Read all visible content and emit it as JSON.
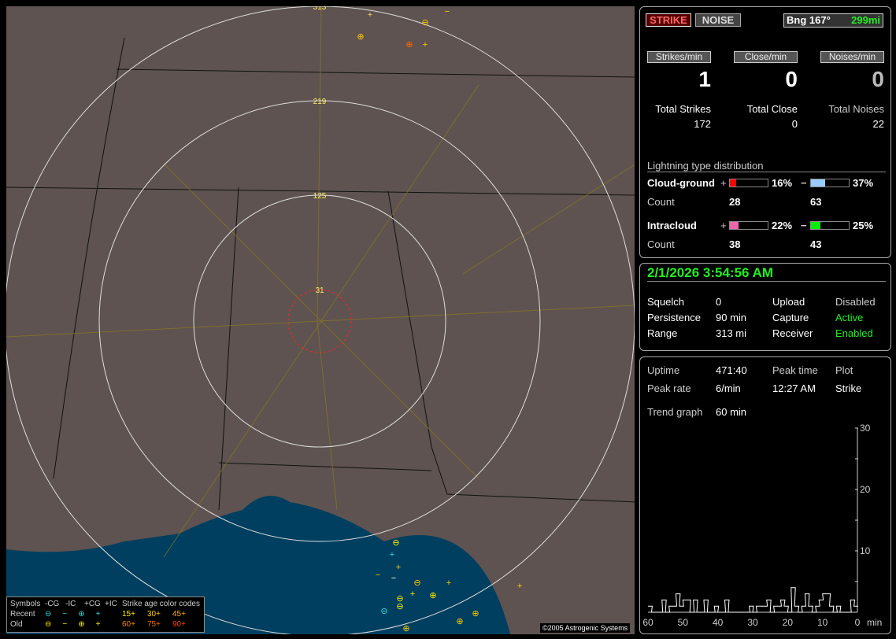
{
  "map": {
    "ring_labels": [
      "313",
      "219",
      "125",
      "31"
    ],
    "copyright": "©2005 Astrogenic Systems",
    "legend": {
      "symbols": "Symbols",
      "neg_cg": "-CG",
      "neg_ic": "-IC",
      "pos_cg": "+CG",
      "pos_ic": "+IC",
      "age_title": "Strike age color codes",
      "recent": "Recent",
      "old": "Old",
      "ages": [
        {
          "label": "15+",
          "color": "#ffee00"
        },
        {
          "label": "30+",
          "color": "#ffcc00"
        },
        {
          "label": "45+",
          "color": "#ffaa00"
        },
        {
          "label": "60+",
          "color": "#ff8800"
        },
        {
          "label": "75+",
          "color": "#ff6600"
        },
        {
          "label": "90+",
          "color": "#ff4400"
        }
      ],
      "recent_color": "#22dddd",
      "old_color": "#ffee00"
    }
  },
  "status": {
    "strike_label": "STRIKE",
    "noise_label": "NOISE",
    "bearing": "Bng 167°",
    "distance": "299mi",
    "strikes_min_label": "Strikes/min",
    "close_min_label": "Close/min",
    "noises_min_label": "Noises/min",
    "strikes_min": "1",
    "close_min": "0",
    "noises_min": "0",
    "total_strikes_label": "Total Strikes",
    "total_close_label": "Total Close",
    "total_noises_label": "Total Noises",
    "total_strikes": "172",
    "total_close": "0",
    "total_noises": "22"
  },
  "distribution": {
    "title": "Lightning type distribution",
    "cg": {
      "label": "Cloud-ground",
      "plus": "+",
      "minus": "−",
      "pos_pct": 16,
      "neg_pct": 37,
      "pos_text": "16%",
      "neg_text": "37%",
      "count_label": "Count",
      "pos_count": "28",
      "neg_count": "63",
      "pos_color": "#ff0000",
      "neg_color": "#99ccff"
    },
    "ic": {
      "label": "Intracloud",
      "plus": "+",
      "minus": "−",
      "pos_pct": 22,
      "neg_pct": 25,
      "pos_text": "22%",
      "neg_text": "25%",
      "count_label": "Count",
      "pos_count": "38",
      "neg_count": "43",
      "pos_color": "#ee66aa",
      "neg_color": "#00ee00"
    }
  },
  "info": {
    "datetime": "2/1/2026 3:54:56 AM",
    "rows": [
      [
        "Squelch",
        "0",
        "Upload",
        "Disabled"
      ],
      [
        "Persistence",
        "90 min",
        "Capture",
        "Active"
      ],
      [
        "Range",
        "313 mi",
        "Receiver",
        "Enabled"
      ]
    ]
  },
  "stats": {
    "uptime_label": "Uptime",
    "uptime": "471:40",
    "peak_time_label": "Peak time",
    "plot_label": "Plot",
    "peak_rate_label": "Peak rate",
    "peak_rate": "6/min",
    "peak_time": "12:27 AM",
    "plot": "Strike",
    "trend_label": "Trend graph",
    "trend": "60 min"
  },
  "chart_data": {
    "type": "line",
    "xlabel": "min",
    "x_ticks": [
      "60",
      "50",
      "40",
      "30",
      "20",
      "10",
      "0"
    ],
    "y_ticks": [
      "30",
      "20",
      "10"
    ],
    "xlim": [
      60,
      0
    ],
    "ylim": [
      0,
      30
    ],
    "series": [
      {
        "color": "#ffffff",
        "values": [
          1,
          0,
          0,
          0,
          2,
          0,
          1,
          1,
          3,
          1,
          2,
          2,
          0,
          2,
          0,
          0,
          2,
          0,
          0,
          1,
          0,
          0,
          2,
          0,
          0,
          0,
          0,
          0,
          0,
          1,
          0,
          1,
          1,
          1,
          2,
          0,
          1,
          1,
          2,
          1,
          0,
          4,
          1,
          0,
          1,
          3,
          1,
          0,
          1,
          2,
          3,
          3,
          1,
          0,
          1,
          0,
          0,
          0,
          2,
          1
        ]
      }
    ]
  }
}
